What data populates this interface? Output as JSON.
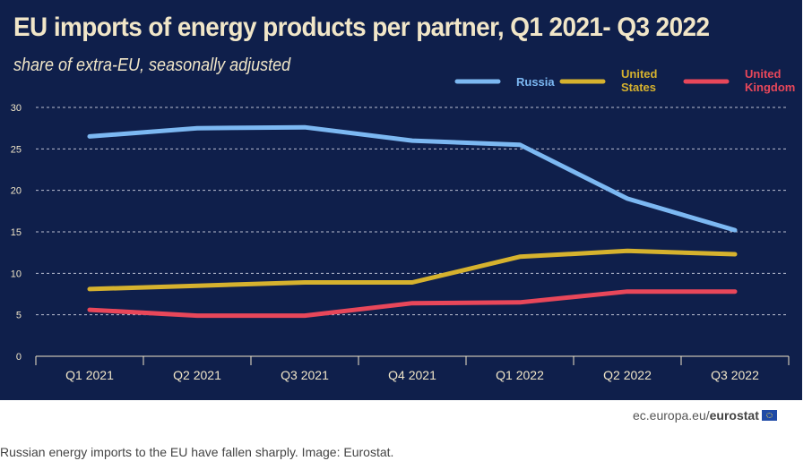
{
  "chart_data": {
    "type": "line",
    "title": "EU imports of energy products per partner, Q1 2021- Q3 2022",
    "subtitle": "share of extra-EU, seasonally adjusted",
    "categories": [
      "Q1 2021",
      "Q2 2021",
      "Q3 2021",
      "Q4 2021",
      "Q1 2022",
      "Q2 2022",
      "Q3 2022"
    ],
    "series": [
      {
        "name": "Russia",
        "color": "#7cb8f2",
        "values": [
          26.5,
          27.5,
          27.6,
          26.0,
          25.5,
          19.0,
          15.2
        ]
      },
      {
        "name": "United States",
        "color": "#d6b22e",
        "values": [
          8.1,
          8.5,
          8.9,
          8.9,
          12.0,
          12.7,
          12.3
        ]
      },
      {
        "name": "United Kingdom",
        "color": "#e8475a",
        "values": [
          5.6,
          4.9,
          4.9,
          6.4,
          6.5,
          7.8,
          7.8
        ]
      }
    ],
    "yticks": [
      0,
      5,
      10,
      15,
      20,
      25,
      30
    ],
    "ylim": [
      0,
      30
    ],
    "grid": "horizontal dashed",
    "legend_position": "top-right"
  },
  "source_prefix": "ec.europa.eu/",
  "source_brand": "eurostat",
  "caption": "Russian energy imports to the EU have fallen sharply. Image: Eurostat."
}
